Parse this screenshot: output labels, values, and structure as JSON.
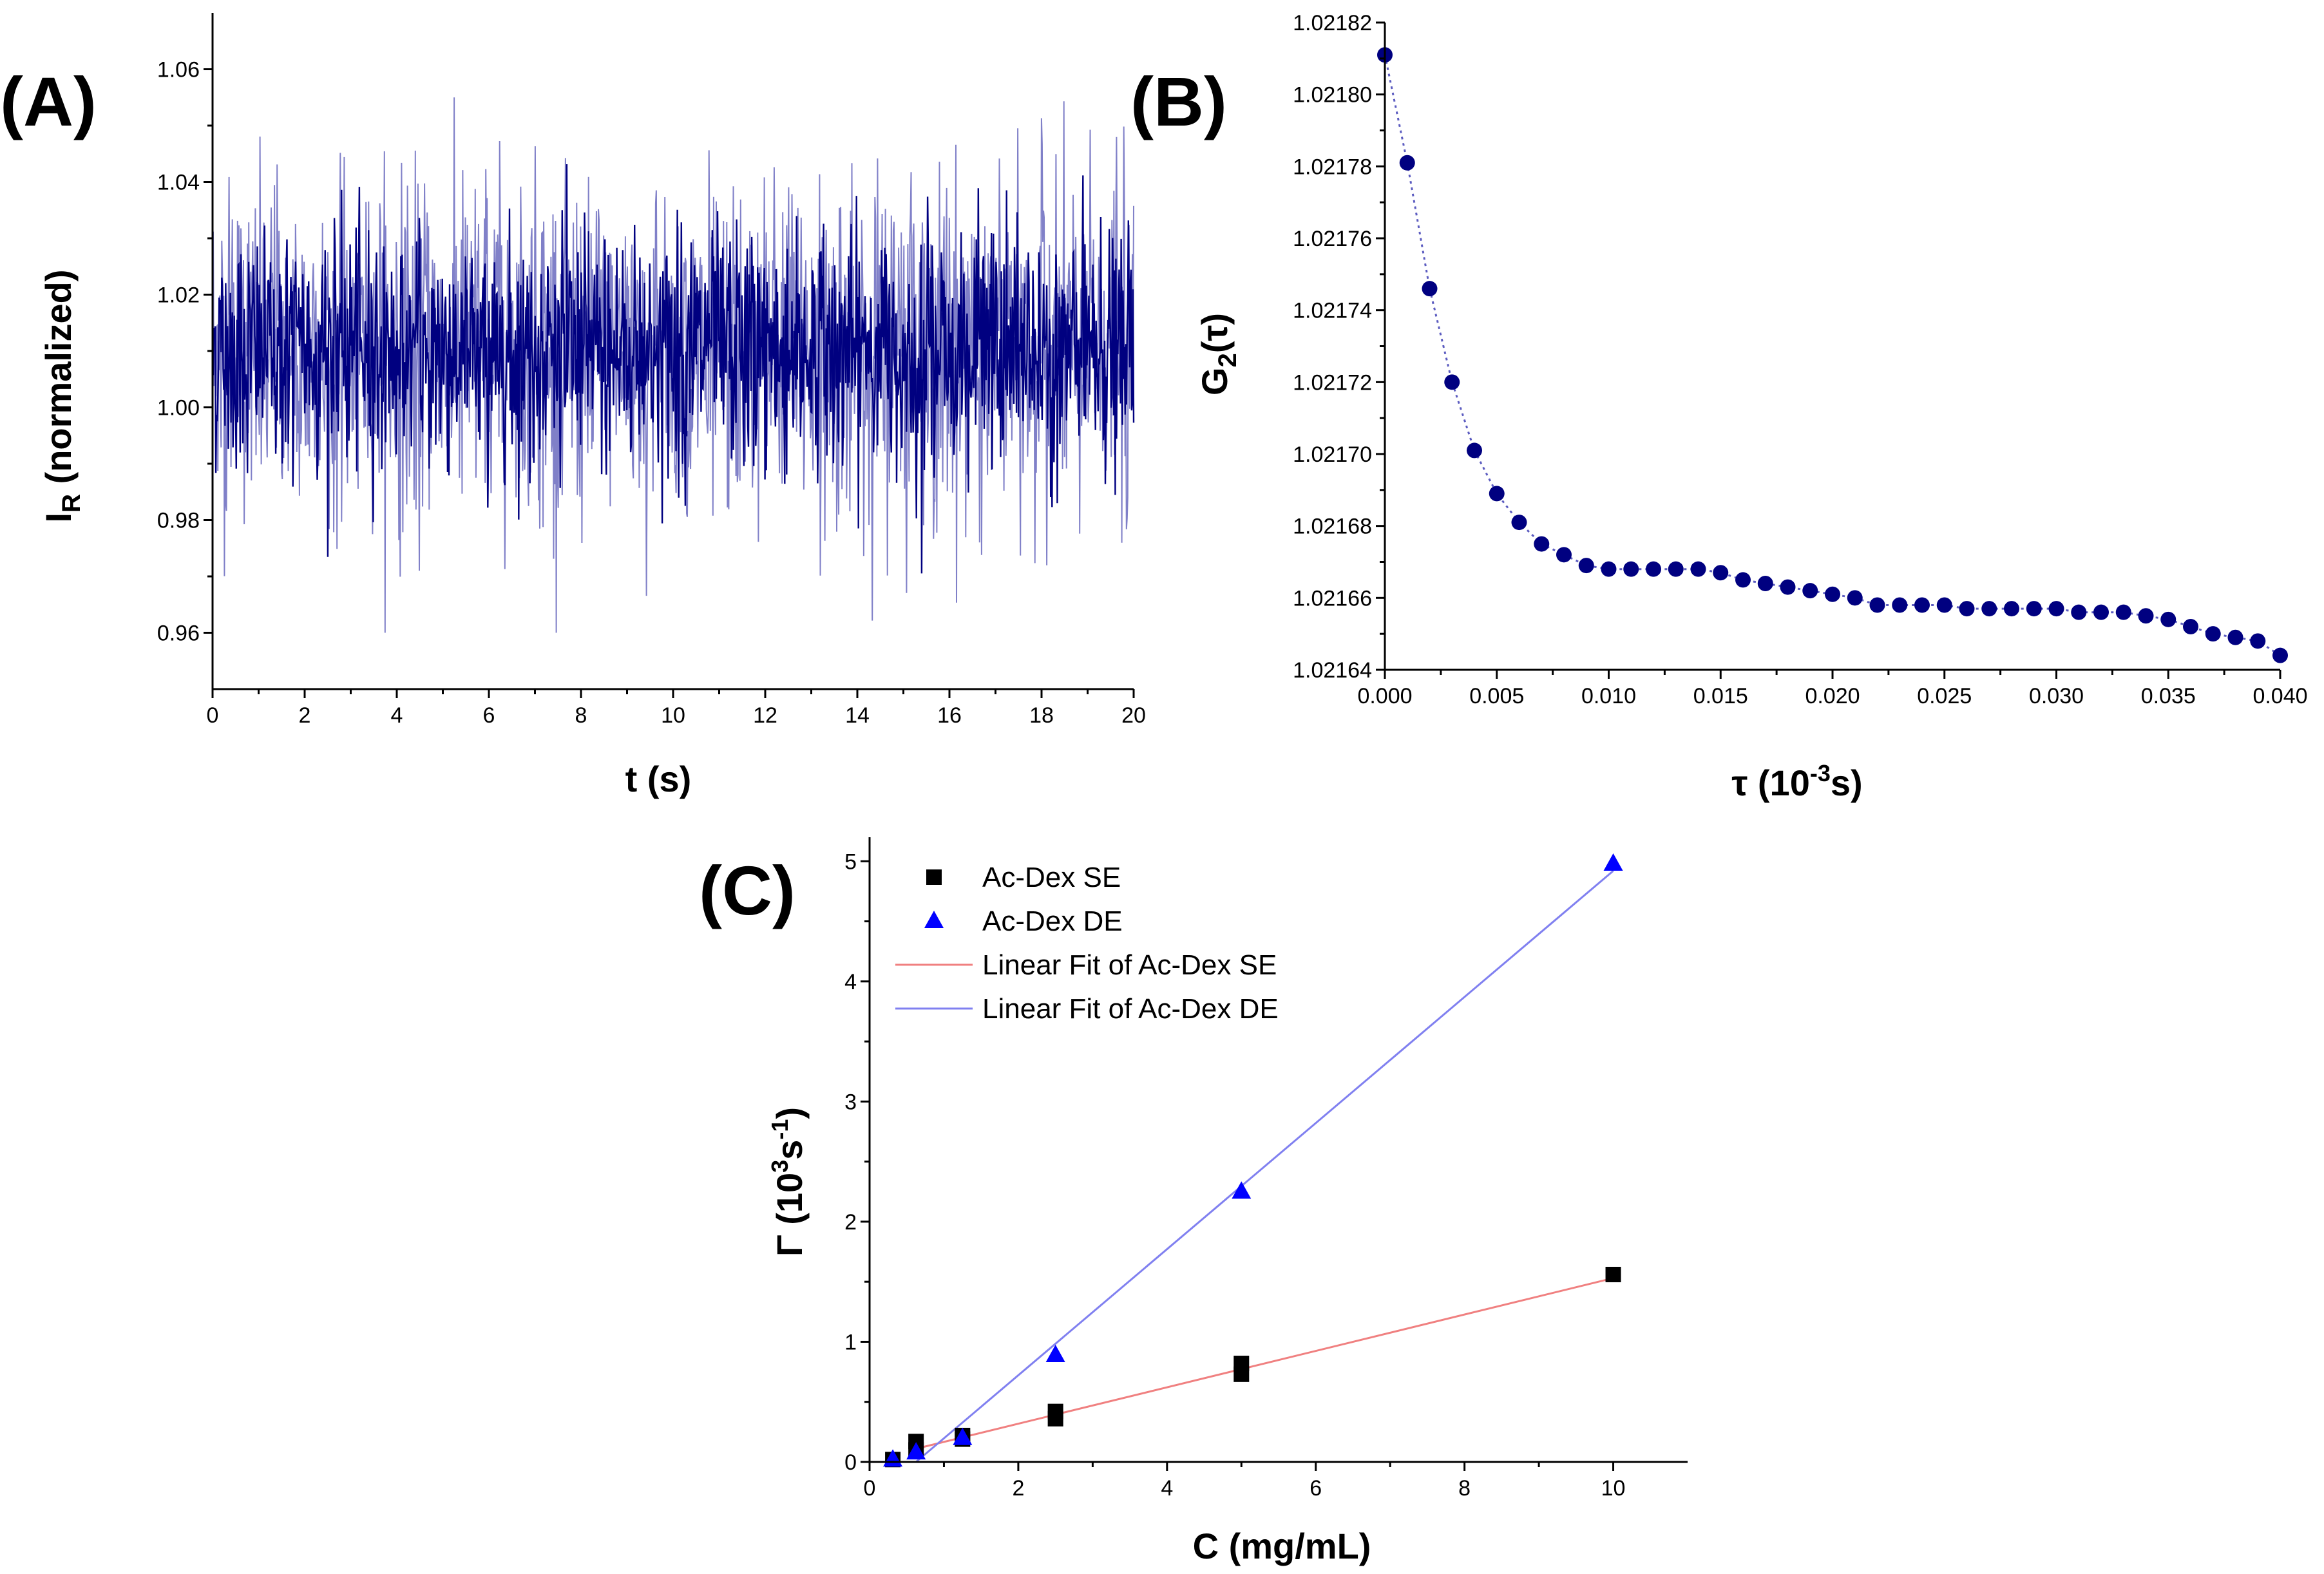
{
  "chart_data": [
    {
      "type": "line",
      "panel_label": "(A)",
      "xlabel": "t (s)",
      "ylabel": "I_R (normalized)",
      "ylabel_parts": {
        "main": "I",
        "sub": "R",
        "rest": " (normalized)"
      },
      "xlim": [
        0,
        20
      ],
      "ylim": [
        0.95,
        1.07
      ],
      "xticks": [
        0,
        2,
        4,
        6,
        8,
        10,
        12,
        14,
        16,
        18,
        20
      ],
      "xtick_labels": [
        "0",
        "2",
        "4",
        "6",
        "8",
        "10",
        "12",
        "14",
        "16",
        "18",
        "20"
      ],
      "yticks": [
        0.96,
        0.98,
        1.0,
        1.02,
        1.04,
        1.06
      ],
      "ytick_labels": [
        "0.96",
        "0.98",
        "1.00",
        "1.02",
        "1.04",
        "1.06"
      ],
      "grid": false,
      "series": [
        {
          "color": "#000080",
          "noise": {
            "mean": 1.01,
            "sd": 0.0105,
            "min": 0.96,
            "max": 1.055,
            "samples": 1400
          },
          "light_color": "#8080c8"
        }
      ]
    },
    {
      "type": "scatter",
      "panel_label": "(B)",
      "xlabel": "τ (10⁻³s)",
      "xlabel_parts": {
        "main": "τ (10",
        "sup": "-3",
        "rest": "s)"
      },
      "ylabel": "G₂(τ)",
      "ylabel_parts": {
        "main": "G",
        "sub": "2",
        "rest": "(τ)"
      },
      "xlim": [
        0,
        0.04
      ],
      "ylim": [
        1.02164,
        1.02182
      ],
      "xticks": [
        0,
        0.005,
        0.01,
        0.015,
        0.02,
        0.025,
        0.03,
        0.035,
        0.04
      ],
      "xtick_labels": [
        "0.000",
        "0.005",
        "0.010",
        "0.015",
        "0.020",
        "0.025",
        "0.030",
        "0.035",
        "0.040"
      ],
      "yticks": [
        1.02164,
        1.02166,
        1.02168,
        1.0217,
        1.02172,
        1.02174,
        1.02176,
        1.02178,
        1.0218,
        1.02182
      ],
      "ytick_labels": [
        "1.02164",
        "1.02166",
        "1.02168",
        "1.02170",
        "1.02172",
        "1.02174",
        "1.02176",
        "1.02178",
        "1.02180",
        "1.02182"
      ],
      "grid": false,
      "series": [
        {
          "color": "#000080",
          "x": [
            0,
            0.001,
            0.002,
            0.003,
            0.004,
            0.005,
            0.006,
            0.007,
            0.008,
            0.009,
            0.01,
            0.011,
            0.012,
            0.013,
            0.014,
            0.015,
            0.016,
            0.017,
            0.018,
            0.019,
            0.02,
            0.021,
            0.022,
            0.023,
            0.024,
            0.025,
            0.026,
            0.027,
            0.028,
            0.029,
            0.03,
            0.031,
            0.032,
            0.033,
            0.034,
            0.035,
            0.036,
            0.037,
            0.038,
            0.039,
            0.04
          ],
          "y": [
            1.021811,
            1.021781,
            1.021746,
            1.02172,
            1.021701,
            1.021689,
            1.021681,
            1.021675,
            1.021672,
            1.021669,
            1.021668,
            1.021668,
            1.021668,
            1.021668,
            1.021668,
            1.021667,
            1.021665,
            1.021664,
            1.021663,
            1.021662,
            1.021661,
            1.02166,
            1.021658,
            1.021658,
            1.021658,
            1.021658,
            1.021657,
            1.021657,
            1.021657,
            1.021657,
            1.021657,
            1.021656,
            1.021656,
            1.021656,
            1.021655,
            1.021654,
            1.021652,
            1.02165,
            1.021649,
            1.021648,
            1.021644
          ]
        }
      ]
    },
    {
      "type": "scatter",
      "panel_label": "(C)",
      "xlabel": "C (mg/mL)",
      "ylabel": "Γ (10³s⁻¹)",
      "ylabel_parts": {
        "main": "Γ (10",
        "sup1": "3",
        "mid": "s",
        "sup2": "-1",
        "rest": ")"
      },
      "xlim": [
        0,
        11
      ],
      "ylim": [
        0,
        5.2
      ],
      "xticks": [
        0,
        2,
        4,
        6,
        8,
        10
      ],
      "xtick_labels": [
        "0",
        "2",
        "4",
        "6",
        "8",
        "10"
      ],
      "yticks": [
        0,
        1,
        2,
        3,
        4,
        5
      ],
      "ytick_labels": [
        "0",
        "1",
        "2",
        "3",
        "4",
        "5"
      ],
      "grid": false,
      "legend_position": "top-left",
      "series": [
        {
          "name": "Ac-Dex SE",
          "marker": "square",
          "color": "#000000",
          "x": [
            0.3125,
            0.625,
            0.625,
            1.25,
            1.25,
            2.5,
            2.5,
            5,
            5,
            10
          ],
          "y": [
            0.02,
            0.1,
            0.17,
            0.19,
            0.22,
            0.36,
            0.42,
            0.73,
            0.82,
            1.56
          ]
        },
        {
          "name": "Ac-Dex DE",
          "marker": "triangle",
          "color": "#0000ff",
          "x": [
            0.3125,
            0.625,
            1.25,
            2.5,
            5,
            10
          ],
          "y": [
            0.02,
            0.08,
            0.2,
            0.89,
            2.25,
            4.98
          ]
        },
        {
          "name": "Linear Fit of Ac-Dex SE",
          "line": true,
          "color": "#f08080",
          "x": [
            0.625,
            10
          ],
          "y": [
            0.11,
            1.53
          ]
        },
        {
          "name": "Linear Fit of Ac-Dex DE",
          "line": true,
          "color": "#8080f0",
          "x": [
            0.625,
            10
          ],
          "y": [
            0.0,
            4.92
          ]
        }
      ]
    }
  ]
}
